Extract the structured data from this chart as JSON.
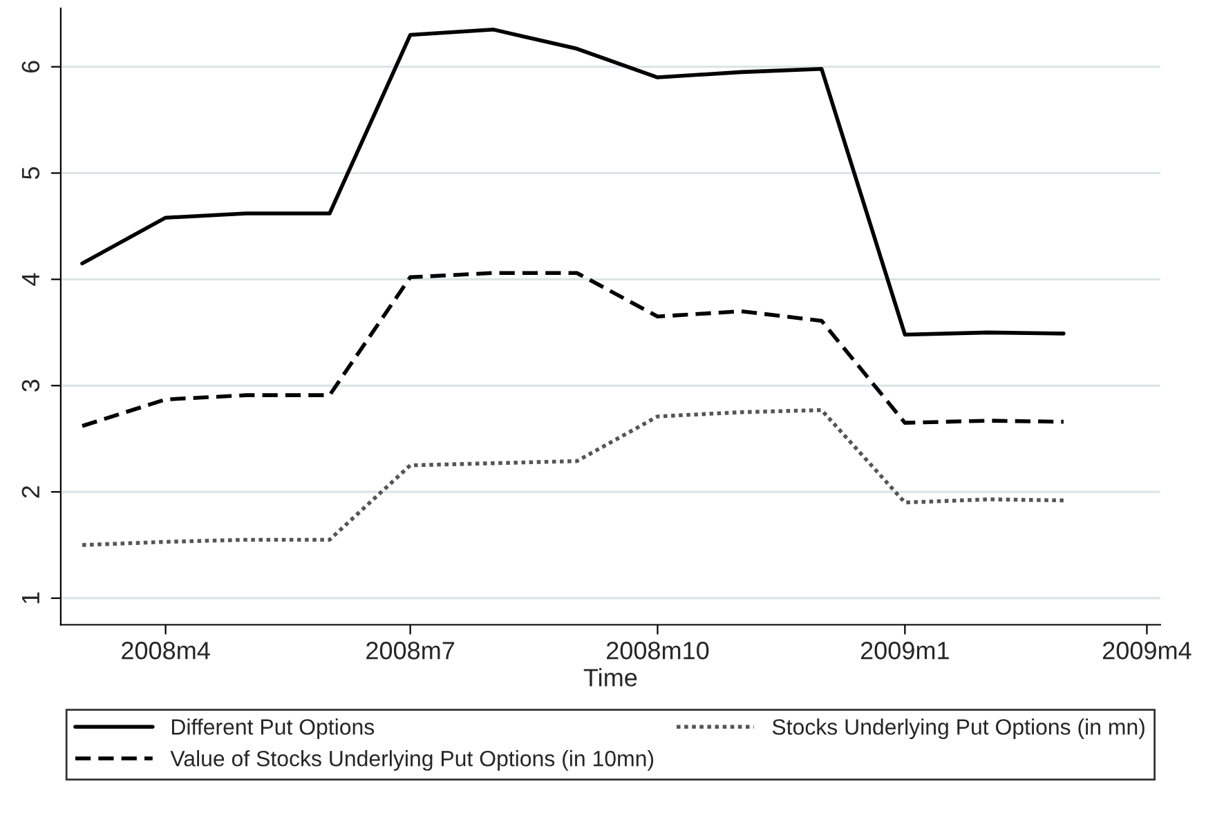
{
  "chart_data": {
    "type": "line",
    "xlabel": "Time",
    "x": [
      "2008-03",
      "2008-04",
      "2008-05",
      "2008-06",
      "2008-07",
      "2008-08",
      "2008-09",
      "2008-10",
      "2008-11",
      "2008-12",
      "2009-01",
      "2009-02",
      "2009-03"
    ],
    "series": [
      {
        "name": "Different Put Options",
        "color": "#000000",
        "line_style": "solid",
        "values": [
          4.15,
          4.58,
          4.62,
          4.62,
          6.3,
          6.35,
          6.17,
          5.9,
          5.95,
          5.98,
          3.48,
          3.5,
          3.49
        ]
      },
      {
        "name": "Value of Stocks Underlying Put Options (in 10mn)",
        "color": "#000000",
        "line_style": "dashed",
        "values": [
          2.62,
          2.87,
          2.91,
          2.91,
          4.02,
          4.06,
          4.06,
          3.65,
          3.7,
          3.61,
          2.65,
          2.67,
          2.66
        ]
      },
      {
        "name": "Stocks Underlying Put Options (in mn)",
        "color": "#555555",
        "line_style": "dotted",
        "values": [
          1.5,
          1.53,
          1.55,
          1.55,
          2.25,
          2.27,
          2.29,
          2.71,
          2.75,
          2.77,
          1.9,
          1.93,
          1.92
        ]
      }
    ],
    "xlim": [
      "2008-02-22",
      "2009-04-06"
    ],
    "xticks": [
      {
        "value": "2008-04",
        "label": "2008m4"
      },
      {
        "value": "2008-07",
        "label": "2008m7"
      },
      {
        "value": "2008-10",
        "label": "2008m10"
      },
      {
        "value": "2009-01",
        "label": "2009m1"
      },
      {
        "value": "2009-04",
        "label": "2009m4"
      }
    ],
    "ylim": [
      0.75,
      6.55
    ],
    "yticks": [
      1,
      2,
      3,
      4,
      5,
      6
    ],
    "grid": "y",
    "legend": "bottom"
  }
}
